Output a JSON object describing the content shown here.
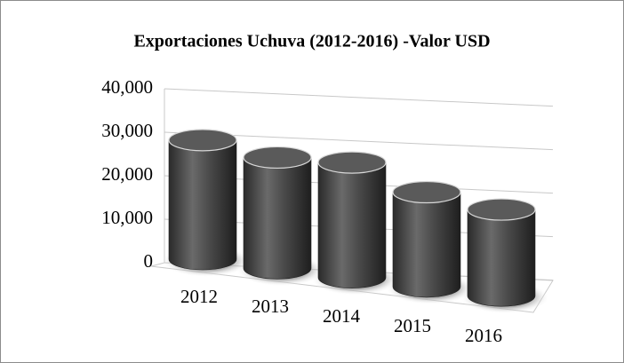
{
  "chart_data": {
    "type": "bar",
    "title": "Exportaciones Uchuva (2012-2016) -Valor USD",
    "categories": [
      "2012",
      "2013",
      "2014",
      "2015",
      "2016"
    ],
    "values": [
      29000,
      27000,
      28000,
      23000,
      21000
    ],
    "color": "#4a4a4a",
    "ylim": [
      0,
      40000
    ],
    "yticks": [
      0,
      {
        "value": 10000,
        "label": "10,000"
      },
      {
        "value": 20000,
        "label": "20,000"
      },
      {
        "value": 30000,
        "label": "30,000"
      },
      {
        "value": 40000,
        "label": "40,000"
      }
    ],
    "grid": true
  }
}
